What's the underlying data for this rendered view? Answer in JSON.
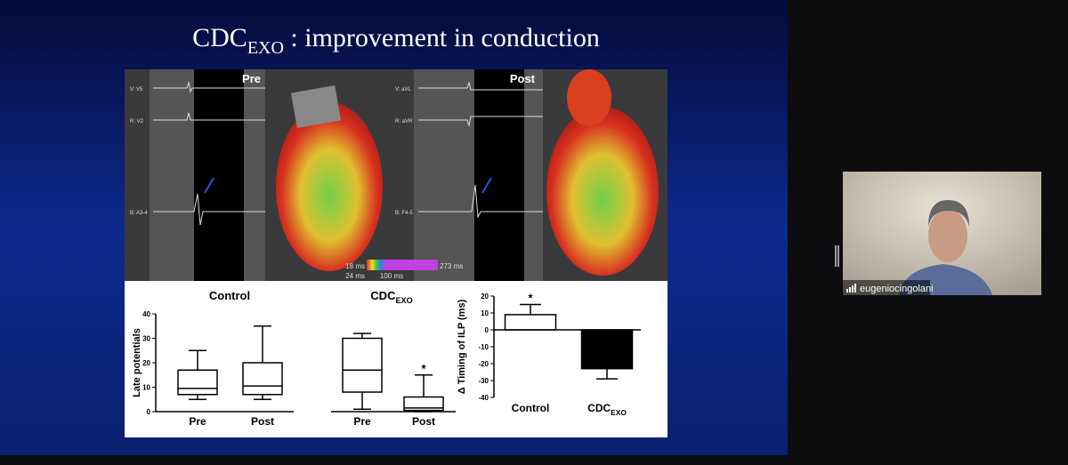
{
  "slide": {
    "title": {
      "main": "CDC",
      "sub": "EXO",
      "rest": " : improvement in conduction"
    },
    "images": {
      "pre_label": "Pre",
      "post_label": "Post",
      "pre_channels": [
        "V: V5",
        "R: V2",
        "B: A3-4"
      ],
      "post_channels": [
        "V: aVL",
        "R: aVR",
        "B: F4-5"
      ],
      "colorbar": {
        "min": "18 ms",
        "low": "24 ms",
        "mid": "100 ms",
        "max": "273 ms"
      }
    }
  },
  "chart_data": [
    {
      "type": "box",
      "title": "Control",
      "ylabel": "Late potentials",
      "categories": [
        "Pre",
        "Post"
      ],
      "boxes": [
        {
          "min": 5,
          "q1": 7,
          "median": 9.5,
          "q3": 17,
          "max": 25
        },
        {
          "min": 5,
          "q1": 7,
          "median": 10.5,
          "q3": 20,
          "max": 35
        }
      ],
      "ylim": [
        0,
        40
      ],
      "yticks": [
        0,
        10,
        20,
        30,
        40
      ]
    },
    {
      "type": "box",
      "title": {
        "main": "CDC",
        "sub": "EXO"
      },
      "categories": [
        "Pre",
        "Post"
      ],
      "boxes": [
        {
          "min": 1,
          "q1": 8,
          "median": 17,
          "q3": 30,
          "max": 32
        },
        {
          "min": 0,
          "q1": 0.5,
          "median": 1.5,
          "q3": 6,
          "max": 15
        }
      ],
      "annotation": "*",
      "ylim": [
        0,
        40
      ]
    },
    {
      "type": "bar",
      "ylabel": "Δ Timing of ILP (ms)",
      "categories": [
        "Control",
        {
          "main": "CDC",
          "sub": "EXO"
        }
      ],
      "values": [
        9,
        -23
      ],
      "errors": [
        6,
        6
      ],
      "colors": [
        "#ffffff",
        "#000000"
      ],
      "annotation": "*",
      "ylim": [
        -40,
        20
      ],
      "yticks": [
        -40,
        -30,
        -20,
        -10,
        0,
        10,
        20
      ]
    }
  ],
  "participant": {
    "name": "eugeniocingolani"
  }
}
